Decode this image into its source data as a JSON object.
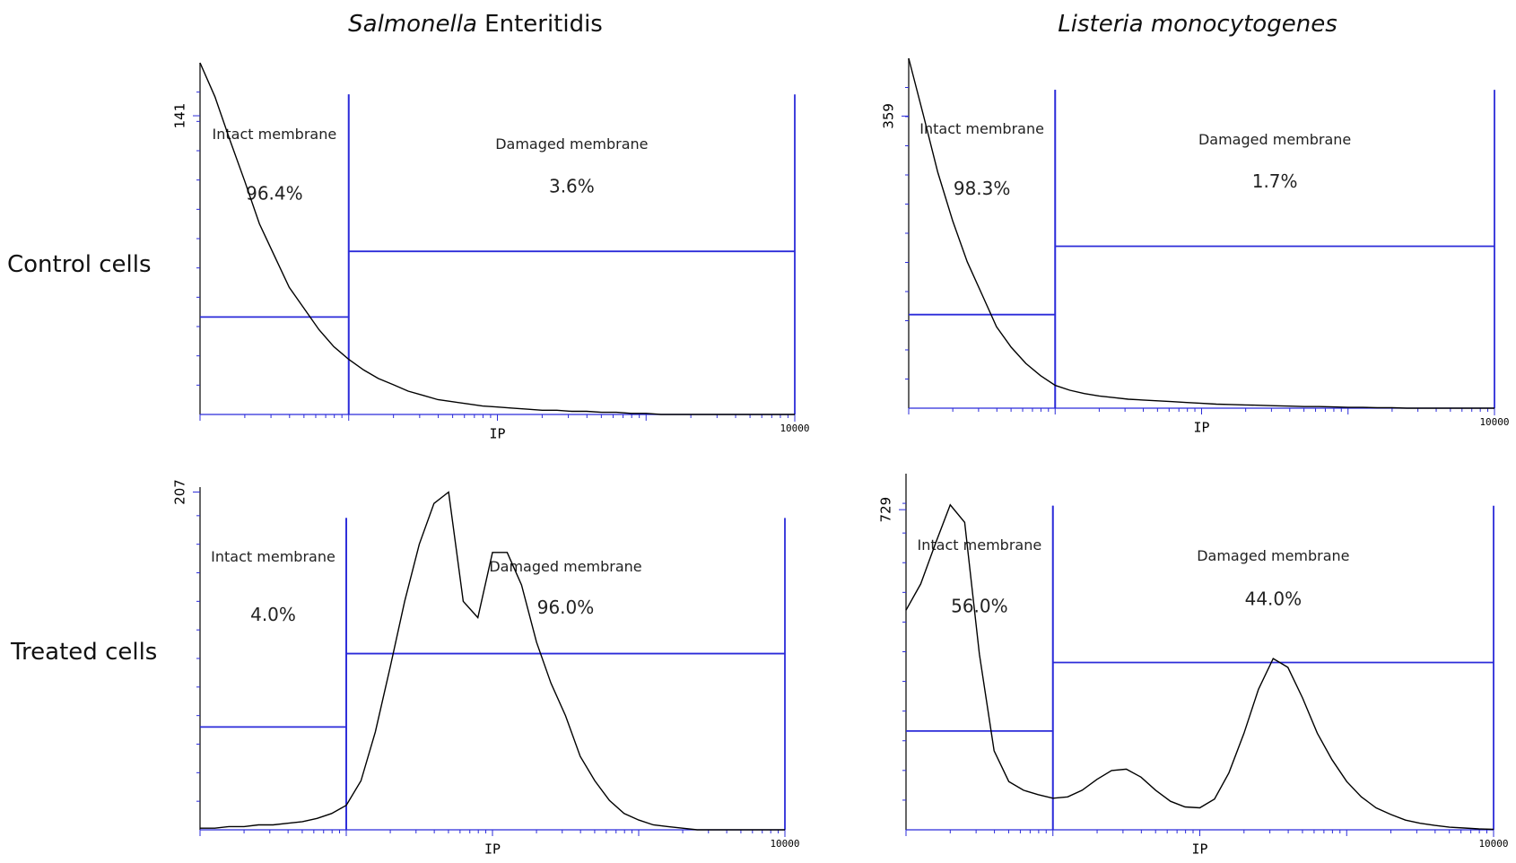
{
  "column_titles": [
    {
      "italic": "Salmonella",
      "text": "Enteritidis"
    },
    {
      "italic": "Listeria monocytogenes"
    }
  ],
  "row_titles": [
    "Control cells",
    "Treated cells"
  ],
  "chart_data": [
    {
      "type": "line",
      "xlabel": "IP",
      "xscale": "log",
      "xlim": [
        1,
        10000
      ],
      "xticks": [
        10000
      ],
      "ylim": [
        0,
        166
      ],
      "yticks": [
        141
      ],
      "color": "#000000",
      "gate_color": "#2b2bd9",
      "x": [
        1,
        1.26,
        1.58,
        2,
        2.51,
        3.16,
        3.98,
        5.01,
        6.31,
        7.94,
        10,
        12.6,
        15.8,
        20,
        25.1,
        31.6,
        39.8,
        50.1,
        63.1,
        79.4,
        100,
        126,
        158,
        200,
        251,
        316,
        398,
        501,
        631,
        794,
        1000,
        1259,
        1585,
        1995,
        2512,
        3162,
        3981,
        5012,
        6310,
        7943,
        10000
      ],
      "values": [
        166,
        150,
        130,
        110,
        90,
        75,
        60,
        50,
        40,
        32,
        26,
        21,
        17,
        14,
        11,
        9,
        7,
        6,
        5,
        4,
        3.5,
        3,
        2.5,
        2,
        2,
        1.5,
        1.5,
        1,
        1,
        0.5,
        0.5,
        0,
        0,
        0,
        0,
        0,
        0,
        0,
        0,
        0,
        0
      ],
      "gates": [
        {
          "name": "Intact membrane",
          "value": 96.4,
          "value_label": "96.4%",
          "xrange": [
            1,
            10
          ],
          "level": 46
        },
        {
          "name": "Damaged membrane",
          "value": 3.6,
          "value_label": "3.6%",
          "xrange": [
            10,
            10000
          ],
          "level": 77
        }
      ]
    },
    {
      "type": "line",
      "xlabel": "IP",
      "xscale": "log",
      "xlim": [
        1,
        10000
      ],
      "xticks": [
        10000
      ],
      "ylim": [
        0,
        430
      ],
      "yticks": [
        359
      ],
      "color": "#000000",
      "gate_color": "#2b2bd9",
      "x": [
        1,
        1.26,
        1.58,
        2,
        2.51,
        3.16,
        3.98,
        5.01,
        6.31,
        7.94,
        10,
        12.6,
        15.8,
        20,
        25.1,
        31.6,
        39.8,
        50.1,
        63.1,
        79.4,
        100,
        126,
        158,
        200,
        251,
        316,
        398,
        501,
        631,
        794,
        1000,
        1259,
        1585,
        1995,
        2512,
        3162,
        3981,
        5012,
        6310,
        7943,
        10000
      ],
      "values": [
        430,
        360,
        290,
        230,
        180,
        140,
        100,
        75,
        55,
        40,
        28,
        22,
        18,
        15,
        13,
        11,
        10,
        9,
        8,
        7,
        6,
        5,
        4.5,
        4,
        3.5,
        3,
        2.5,
        2,
        2,
        1.5,
        1,
        1,
        0.5,
        0.5,
        0,
        0,
        0,
        0,
        0,
        0,
        0
      ],
      "gates": [
        {
          "name": "Intact membrane",
          "value": 98.3,
          "value_label": "98.3%",
          "xrange": [
            1,
            10
          ],
          "level": 115
        },
        {
          "name": "Damaged membrane",
          "value": 1.7,
          "value_label": "1.7%",
          "xrange": [
            10,
            10000
          ],
          "level": 199
        }
      ]
    },
    {
      "type": "line",
      "xlabel": "IP",
      "xscale": "log",
      "xlim": [
        1,
        10000
      ],
      "xticks": [
        10000
      ],
      "ylim": [
        0,
        210
      ],
      "yticks": [
        207
      ],
      "color": "#000000",
      "gate_color": "#2b2bd9",
      "x": [
        1,
        1.26,
        1.58,
        2,
        2.51,
        3.16,
        3.98,
        5.01,
        6.31,
        7.94,
        10,
        12.6,
        15.8,
        20,
        25.1,
        31.6,
        39.8,
        50.1,
        63.1,
        79.4,
        100,
        126,
        158,
        200,
        251,
        316,
        398,
        501,
        631,
        794,
        1000,
        1259,
        1585,
        1995,
        2512,
        3162,
        3981,
        5012,
        6310,
        7943,
        10000
      ],
      "values": [
        1,
        1,
        2,
        2,
        3,
        3,
        4,
        5,
        7,
        10,
        15,
        30,
        60,
        100,
        140,
        175,
        200,
        207,
        140,
        130,
        170,
        170,
        150,
        115,
        90,
        70,
        45,
        30,
        18,
        10,
        6,
        3,
        2,
        1,
        0,
        0,
        0,
        0,
        0,
        0,
        0
      ],
      "gates": [
        {
          "name": "Intact membrane",
          "value": 4.0,
          "value_label": "4.0%",
          "xrange": [
            1,
            10
          ],
          "level": 63
        },
        {
          "name": "Damaged membrane",
          "value": 96.0,
          "value_label": "96.0%",
          "xrange": [
            10,
            10000
          ],
          "level": 108
        }
      ]
    },
    {
      "type": "line",
      "xlabel": "IP",
      "xscale": "log",
      "xlim": [
        1,
        10000
      ],
      "xticks": [
        10000
      ],
      "ylim": [
        0,
        811
      ],
      "yticks": [
        729
      ],
      "color": "#000000",
      "gate_color": "#2b2bd9",
      "x": [
        1,
        1.26,
        1.58,
        2,
        2.51,
        3.16,
        3.98,
        5.01,
        6.31,
        7.94,
        10,
        12.6,
        15.8,
        20,
        25.1,
        31.6,
        39.8,
        50.1,
        63.1,
        79.4,
        100,
        126,
        158,
        200,
        251,
        316,
        398,
        501,
        631,
        794,
        1000,
        1259,
        1585,
        1995,
        2512,
        3162,
        3981,
        5012,
        6310,
        7943,
        10000
      ],
      "values": [
        500,
        560,
        650,
        740,
        700,
        400,
        180,
        110,
        90,
        80,
        72,
        75,
        90,
        115,
        135,
        138,
        120,
        90,
        65,
        52,
        50,
        70,
        130,
        220,
        320,
        390,
        370,
        300,
        220,
        160,
        110,
        75,
        50,
        35,
        22,
        15,
        10,
        6,
        4,
        2,
        1
      ],
      "gates": [
        {
          "name": "Intact membrane",
          "value": 56.0,
          "value_label": "56.0%",
          "xrange": [
            1,
            10
          ],
          "level": 225
        },
        {
          "name": "Damaged membrane",
          "value": 44.0,
          "value_label": "44.0%",
          "xrange": [
            10,
            10000
          ],
          "level": 381
        }
      ]
    }
  ]
}
